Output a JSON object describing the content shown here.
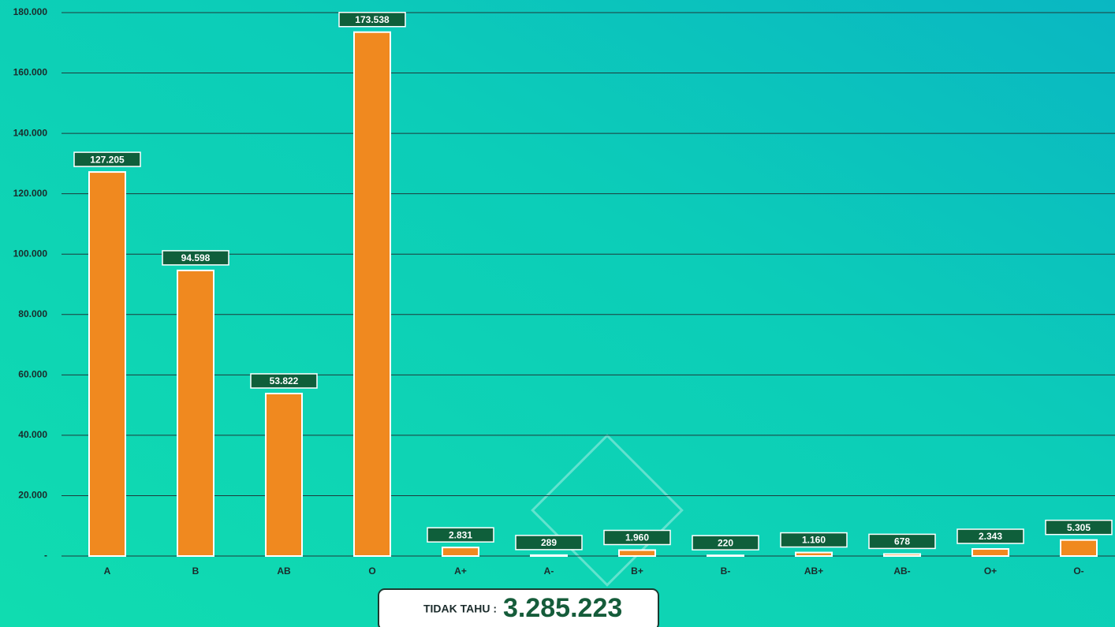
{
  "chart_data": {
    "type": "bar",
    "categories": [
      "A",
      "B",
      "AB",
      "O",
      "A+",
      "A-",
      "B+",
      "B-",
      "AB+",
      "AB-",
      "O+",
      "O-"
    ],
    "values": [
      127205,
      94598,
      53822,
      173538,
      2831,
      289,
      1960,
      220,
      1160,
      678,
      2343,
      5305
    ],
    "value_labels": [
      "127.205",
      "94.598",
      "53.822",
      "173.538",
      "2.831",
      "289",
      "1.960",
      "220",
      "1.160",
      "678",
      "2.343",
      "5.305"
    ],
    "color": "#f0891f",
    "ylim": [
      0,
      180000
    ],
    "yticks": [
      {
        "value": 0,
        "label": "-"
      },
      {
        "value": 20000,
        "label": "20.000"
      },
      {
        "value": 40000,
        "label": "40.000"
      },
      {
        "value": 60000,
        "label": "60.000"
      },
      {
        "value": 80000,
        "label": "80.000"
      },
      {
        "value": 100000,
        "label": "100.000"
      },
      {
        "value": 120000,
        "label": "120.000"
      },
      {
        "value": 140000,
        "label": "140.000"
      },
      {
        "value": 160000,
        "label": "160.000"
      },
      {
        "value": 180000,
        "label": "180.000"
      }
    ],
    "grid": true,
    "note": {
      "label": "TIDAK TAHU :",
      "value": 3285223,
      "value_label": "3.285.223"
    }
  }
}
